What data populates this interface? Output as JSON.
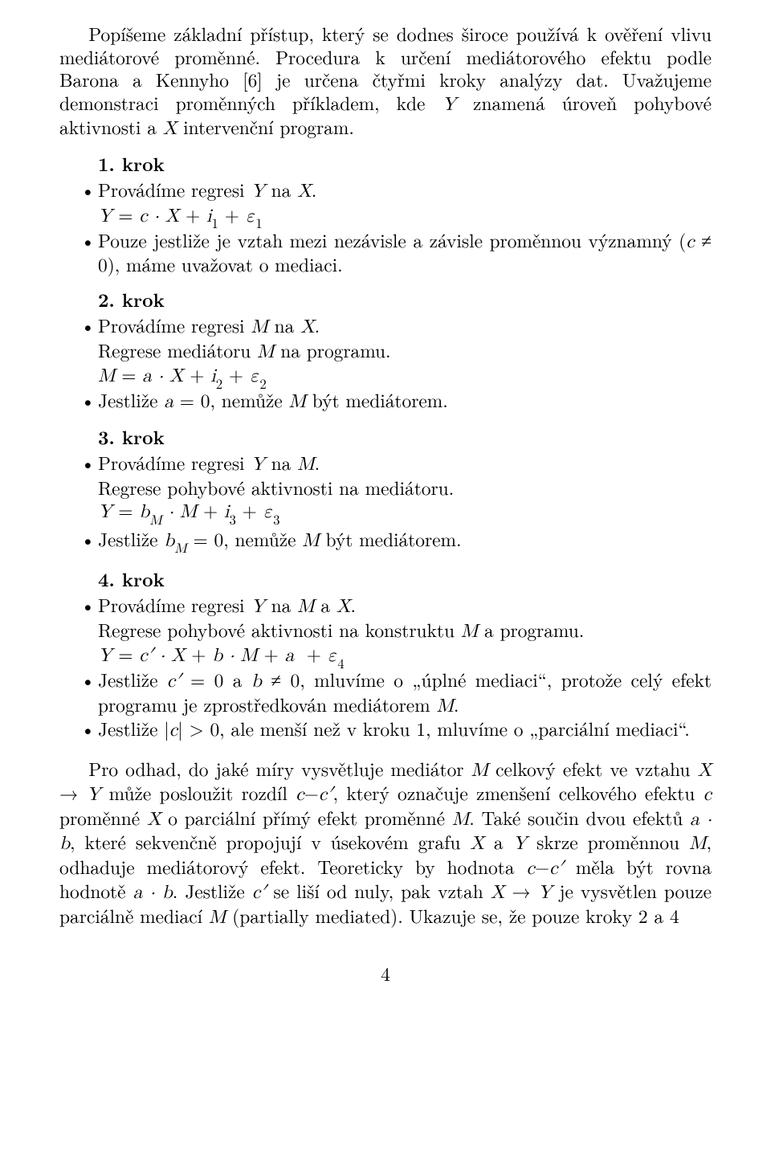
{
  "intro": {
    "p1": "Popíšeme základní přístup, který se dodnes široce používá k ověření vlivu mediátorové proměnné. Procedura k určení mediátorového efektu podle Barona a Kennyho [6] je určena čtyřmi kroky analýzy dat. Uvažujeme demonstraci proměnných příkladem, kde Y znamená úroveň pohybové aktivnosti a X intervenční program."
  },
  "step1": {
    "heading": "1. krok",
    "b1_pre": "Provádíme regresi ",
    "b1_post": ".",
    "eq_sub": "Y = c · X + i₁ + ε₁",
    "b2_pre": "Pouze jestliže je vztah mezi nezávisle a závisle proměnnou významný (",
    "b2_mid": "c ≠ 0",
    "b2_post": "), máme uvažovat o mediaci."
  },
  "step2": {
    "heading": "2. krok",
    "b1_pre": "Provádíme regresi ",
    "b1_post": ".",
    "sub1": "Regrese mediátoru M na programu.",
    "eq_sub": "M = a · X + i₂ + ε₂",
    "b2_pre": "Jestliže ",
    "b2_mid": "a = 0",
    "b2_post": ", nemůže M být mediátorem."
  },
  "step3": {
    "heading": "3. krok",
    "b1_pre": "Provádíme regresi ",
    "b1_post": ".",
    "sub1": "Regrese pohybové aktivnosti na mediátoru.",
    "eq_sub": "Y = b_M · M + i₃ + ε₃",
    "b2_pre": "Jestliže ",
    "b2_post": ", nemůže M být mediátorem."
  },
  "step4": {
    "heading": "4. krok",
    "b1_pre": "Provádíme regresi ",
    "b1_post": ".",
    "sub1": "Regrese pohybové aktivnosti na konstruktu M a programu.",
    "eq_sub": "",
    "b2_pre": "Jestliže ",
    "b2_post": ", mluvíme o „úplné mediaci\", protože celý efekt programu je zprostředkován mediátorem M.",
    "b3_pre": "Jestliže ",
    "b3_post": ", ale menší než v kroku 1, mluvíme o „parciální mediaci\"."
  },
  "closing": {
    "p1": ""
  },
  "pagenum": "4"
}
